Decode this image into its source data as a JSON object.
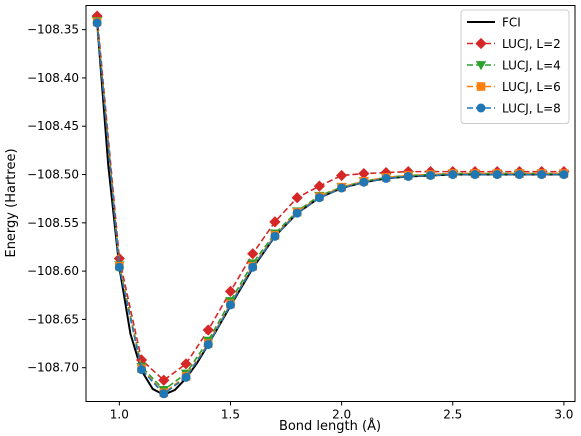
{
  "chart_data": {
    "type": "line",
    "xlabel": "Bond length (Å)",
    "ylabel": "Energy (Hartree)",
    "xlim": [
      0.85,
      3.05
    ],
    "ylim": [
      -108.735,
      -108.325
    ],
    "xticks": [
      1.0,
      1.5,
      2.0,
      2.5,
      3.0
    ],
    "xtick_labels": [
      "1.0",
      "1.5",
      "2.0",
      "2.5",
      "3.0"
    ],
    "yticks": [
      -108.35,
      -108.4,
      -108.45,
      -108.5,
      -108.55,
      -108.6,
      -108.65,
      -108.7
    ],
    "ytick_labels": [
      "−108.35",
      "−108.40",
      "−108.45",
      "−108.50",
      "−108.55",
      "−108.60",
      "−108.65",
      "−108.70"
    ],
    "grid": false,
    "legend_position": "top-right",
    "series": [
      {
        "name": "FCI",
        "color": "#000000",
        "linestyle": "solid",
        "marker": "none",
        "x": [
          0.9,
          0.95,
          1.0,
          1.05,
          1.1,
          1.15,
          1.2,
          1.25,
          1.3,
          1.35,
          1.4,
          1.5,
          1.6,
          1.7,
          1.8,
          1.9,
          2.0,
          2.1,
          2.2,
          2.3,
          2.4,
          2.5,
          2.6,
          2.7,
          2.8,
          2.9,
          3.0
        ],
        "y": [
          -108.342,
          -108.49,
          -108.596,
          -108.665,
          -108.703,
          -108.722,
          -108.728,
          -108.723,
          -108.711,
          -108.695,
          -108.676,
          -108.636,
          -108.597,
          -108.564,
          -108.54,
          -108.524,
          -108.514,
          -108.508,
          -108.504,
          -108.502,
          -108.501,
          -108.5,
          -108.5,
          -108.5,
          -108.5,
          -108.5,
          -108.5
        ]
      },
      {
        "name": "LUCJ, L=2",
        "color": "#d62728",
        "linestyle": "dashed",
        "marker": "diamond",
        "x": [
          0.9,
          1.0,
          1.1,
          1.2,
          1.3,
          1.4,
          1.5,
          1.6,
          1.7,
          1.8,
          1.9,
          2.0,
          2.1,
          2.2,
          2.3,
          2.4,
          2.5,
          2.6,
          2.7,
          2.8,
          2.9,
          3.0
        ],
        "y": [
          -108.336,
          -108.587,
          -108.692,
          -108.713,
          -108.696,
          -108.661,
          -108.621,
          -108.582,
          -108.549,
          -108.524,
          -108.512,
          -108.501,
          -108.499,
          -108.498,
          -108.497,
          -108.497,
          -108.497,
          -108.497,
          -108.497,
          -108.497,
          -108.497,
          -108.497
        ]
      },
      {
        "name": "LUCJ, L=4",
        "color": "#2ca02c",
        "linestyle": "dashed",
        "marker": "triangle-down",
        "x": [
          0.9,
          1.0,
          1.1,
          1.2,
          1.3,
          1.4,
          1.5,
          1.6,
          1.7,
          1.8,
          1.9,
          2.0,
          2.1,
          2.2,
          2.3,
          2.4,
          2.5,
          2.6,
          2.7,
          2.8,
          2.9,
          3.0
        ],
        "y": [
          -108.341,
          -108.594,
          -108.699,
          -108.723,
          -108.706,
          -108.672,
          -108.631,
          -108.592,
          -108.561,
          -108.538,
          -108.522,
          -108.513,
          -108.507,
          -108.503,
          -108.501,
          -108.5,
          -108.499,
          -108.499,
          -108.499,
          -108.499,
          -108.499,
          -108.499
        ]
      },
      {
        "name": "LUCJ, L=6",
        "color": "#ff7f0e",
        "linestyle": "dashed",
        "marker": "square",
        "x": [
          0.9,
          1.0,
          1.1,
          1.2,
          1.3,
          1.4,
          1.5,
          1.6,
          1.7,
          1.8,
          1.9,
          2.0,
          2.1,
          2.2,
          2.3,
          2.4,
          2.5,
          2.6,
          2.7,
          2.8,
          2.9,
          3.0
        ],
        "y": [
          -108.342,
          -108.595,
          -108.701,
          -108.726,
          -108.709,
          -108.675,
          -108.634,
          -108.595,
          -108.563,
          -108.539,
          -108.523,
          -108.513,
          -108.507,
          -108.503,
          -108.501,
          -108.5,
          -108.499,
          -108.499,
          -108.499,
          -108.499,
          -108.499,
          -108.499
        ]
      },
      {
        "name": "LUCJ, L=8",
        "color": "#1f77b4",
        "linestyle": "dashed",
        "marker": "circle",
        "x": [
          0.9,
          1.0,
          1.1,
          1.2,
          1.3,
          1.4,
          1.5,
          1.6,
          1.7,
          1.8,
          1.9,
          2.0,
          2.1,
          2.2,
          2.3,
          2.4,
          2.5,
          2.6,
          2.7,
          2.8,
          2.9,
          3.0
        ],
        "y": [
          -108.343,
          -108.596,
          -108.702,
          -108.727,
          -108.71,
          -108.676,
          -108.635,
          -108.596,
          -108.564,
          -108.54,
          -108.524,
          -108.514,
          -108.508,
          -108.504,
          -108.502,
          -108.501,
          -108.5,
          -108.5,
          -108.5,
          -108.5,
          -108.5,
          -108.5
        ]
      }
    ]
  }
}
